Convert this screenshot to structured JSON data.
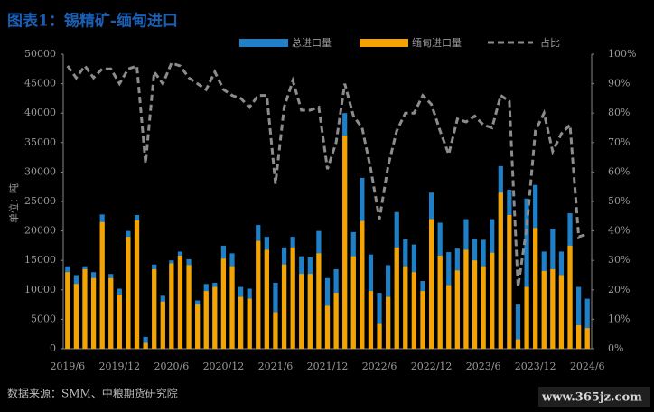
{
  "chart_data": {
    "type": "bar_line",
    "title": "图表1：锡精矿-缅甸进口",
    "y_label": "单位：吨",
    "source": "数据来源：SMM、中粮期货研究院",
    "watermark": "www.365jz.com",
    "categories": [
      "2019/6",
      null,
      null,
      null,
      null,
      null,
      "2019/12",
      null,
      null,
      null,
      null,
      null,
      "2020/6",
      null,
      null,
      null,
      null,
      null,
      "2020/12",
      null,
      null,
      null,
      null,
      null,
      "2021/6",
      null,
      null,
      null,
      null,
      null,
      "2021/12",
      null,
      null,
      null,
      null,
      null,
      "2022/6",
      null,
      null,
      null,
      null,
      null,
      "2022/12",
      null,
      null,
      null,
      null,
      null,
      "2023/6",
      null,
      null,
      null,
      null,
      null,
      "2023/12",
      null,
      null,
      null,
      null,
      null,
      "2024/6"
    ],
    "series": [
      {
        "name": "总进口量",
        "color": "#1f80c8",
        "kind": "bar",
        "values": [
          14000,
          12500,
          14000,
          13000,
          22800,
          12700,
          10200,
          20000,
          22700,
          2000,
          14300,
          9000,
          15000,
          16500,
          15200,
          8200,
          11000,
          11200,
          17500,
          16200,
          10500,
          10200,
          21000,
          19000,
          11200,
          17200,
          19000,
          15700,
          15500,
          20000,
          12000,
          13500,
          40000,
          19800,
          29000,
          16000,
          9500,
          14200,
          23200,
          18600,
          17700,
          11500,
          26500,
          21400,
          16400,
          17000,
          22000,
          18700,
          18500,
          22000,
          31000,
          27000,
          7500,
          25500,
          27800,
          16500,
          20400,
          16500,
          23000,
          10500,
          8500
        ]
      },
      {
        "name": "缅甸进口量",
        "color": "#f5a300",
        "kind": "bar",
        "values": [
          13000,
          11000,
          13500,
          12000,
          21500,
          12000,
          9200,
          19000,
          21800,
          1000,
          13500,
          8000,
          14500,
          15800,
          14200,
          7500,
          9800,
          10500,
          15300,
          14000,
          8800,
          8500,
          18300,
          16800,
          6200,
          14300,
          17200,
          12700,
          12700,
          16200,
          7300,
          9500,
          36200,
          15700,
          21700,
          9800,
          4200,
          8800,
          17200,
          14000,
          13000,
          9800,
          22000,
          15800,
          10800,
          13300,
          16800,
          15000,
          14000,
          16300,
          26500,
          22700,
          1600,
          10500,
          20500,
          13200,
          13500,
          12500,
          17500,
          4000,
          3500
        ]
      },
      {
        "name": "占比",
        "color": "#8c8c8c",
        "kind": "line",
        "axis": "y2",
        "values": [
          96,
          92,
          96,
          92,
          95,
          95,
          90,
          95,
          96,
          63,
          94,
          90,
          97,
          96,
          92,
          90,
          88,
          94,
          88,
          86,
          85,
          82,
          86,
          86,
          56,
          82,
          91,
          81,
          81,
          82,
          61,
          70,
          90,
          79,
          75,
          61,
          44,
          62,
          74,
          80,
          80,
          86,
          83,
          74,
          66,
          78,
          77,
          79,
          76,
          75,
          86,
          84,
          21,
          41,
          74,
          80,
          67,
          73,
          76,
          38,
          39
        ]
      }
    ],
    "ylim": [
      0,
      50000
    ],
    "yticks": [
      0,
      5000,
      10000,
      15000,
      20000,
      25000,
      30000,
      35000,
      40000,
      45000,
      50000
    ],
    "y2lim": [
      0,
      100
    ],
    "y2ticks": [
      {
        "value": 0,
        "label": "0%"
      },
      {
        "value": 10,
        "label": "10%"
      },
      {
        "value": 20,
        "label": "20%"
      },
      {
        "value": 30,
        "label": "30%"
      },
      {
        "value": 40,
        "label": "40%"
      },
      {
        "value": 50,
        "label": "50%"
      },
      {
        "value": 60,
        "label": "60%"
      },
      {
        "value": 70,
        "label": "70%"
      },
      {
        "value": 80,
        "label": "80%"
      },
      {
        "value": 90,
        "label": "90%"
      },
      {
        "value": 100,
        "label": "100%"
      }
    ],
    "legend": "top"
  }
}
